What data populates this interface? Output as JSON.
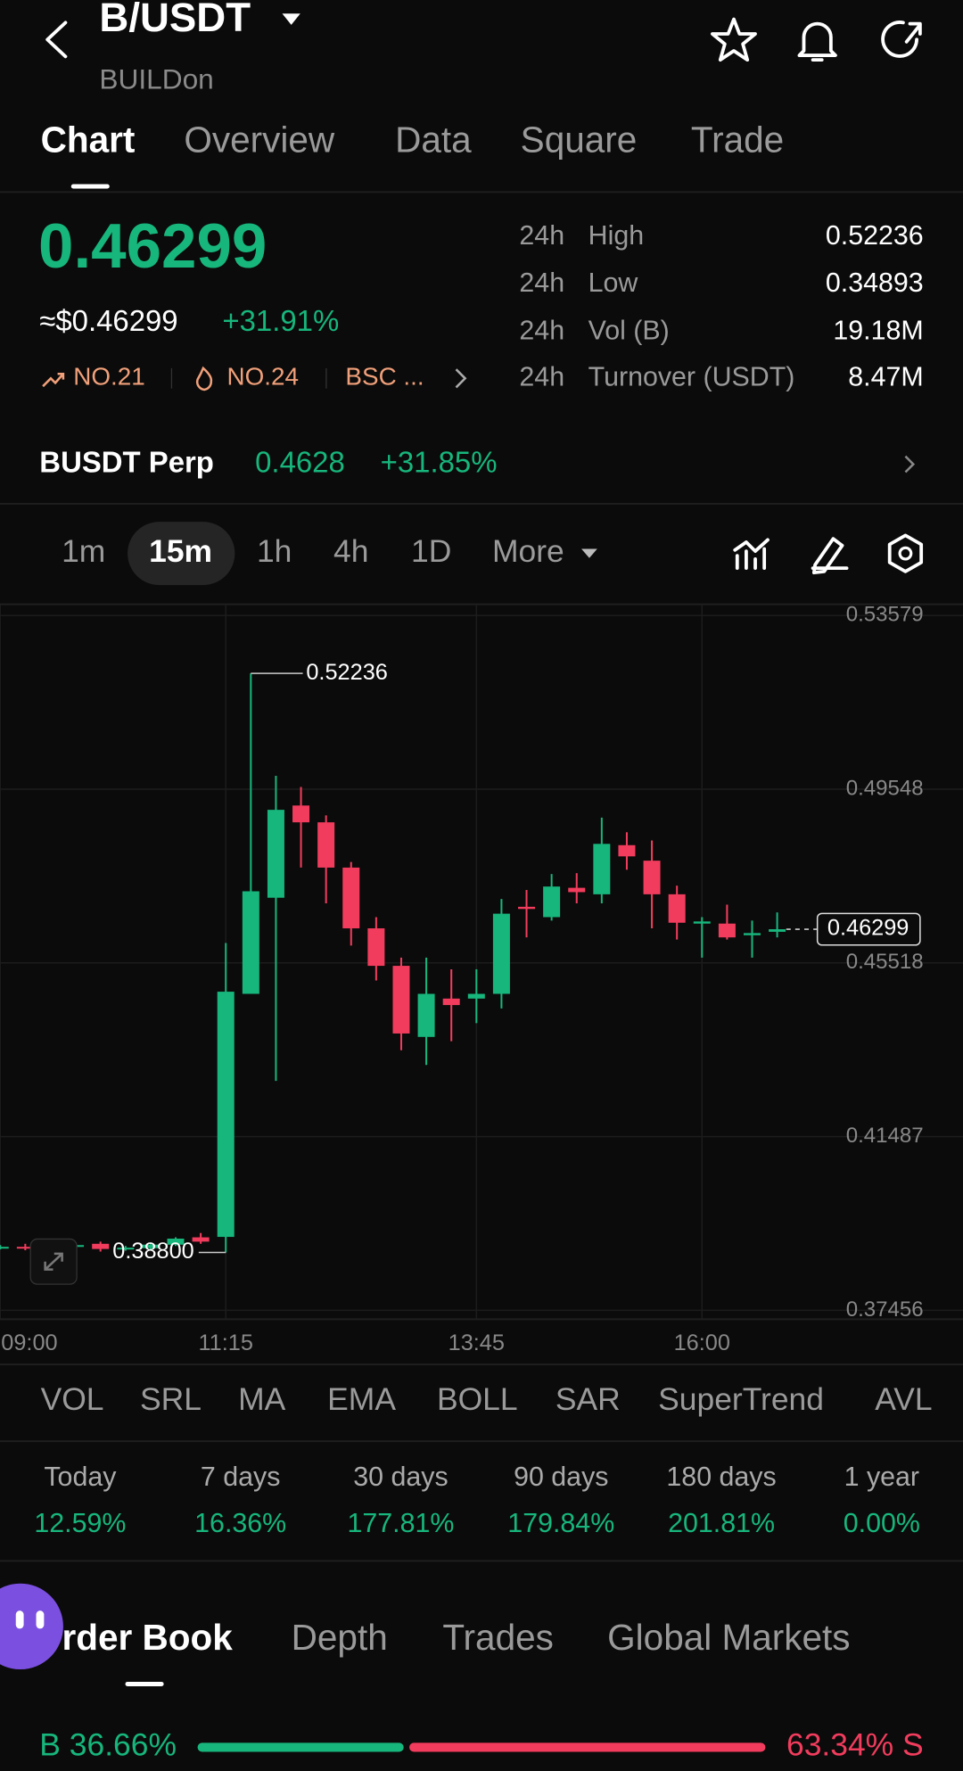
{
  "header": {
    "title": "B/USDT",
    "subtitle": "BUILDon"
  },
  "tabs": [
    "Chart",
    "Overview",
    "Data",
    "Square",
    "Trade"
  ],
  "price": {
    "last": "0.46299",
    "usd": "≈$0.46299",
    "change": "+31.91%",
    "tags": [
      "NO.21",
      "NO.24",
      "BSC ..."
    ]
  },
  "stats": [
    {
      "period": "24h",
      "label": "High",
      "value": "0.52236"
    },
    {
      "period": "24h",
      "label": "Low",
      "value": "0.34893"
    },
    {
      "period": "24h",
      "label": "Vol (B)",
      "value": "19.18M"
    },
    {
      "period": "24h",
      "label": "Turnover (USDT)",
      "value": "8.47M"
    }
  ],
  "perp": {
    "name": "BUSDT Perp",
    "price": "0.4628",
    "change": "+31.85%"
  },
  "intervals": [
    "1m",
    "15m",
    "1h",
    "4h",
    "1D",
    "More"
  ],
  "chart_data": {
    "type": "candlestick",
    "categories": [
      "09:00",
      null,
      null,
      null,
      null,
      null,
      null,
      null,
      null,
      "11:15",
      null,
      null,
      null,
      null,
      null,
      null,
      null,
      null,
      null,
      "13:45",
      null,
      null,
      null,
      null,
      null,
      null,
      null,
      null,
      "16:00",
      null,
      null,
      null
    ],
    "open": [
      0.389,
      0.3893,
      0.3891,
      0.3895,
      0.39,
      0.3888,
      0.389,
      0.3898,
      0.3915,
      0.3916,
      0.448,
      0.4703,
      0.4917,
      0.4878,
      0.4773,
      0.4632,
      0.4545,
      0.438,
      0.4469,
      0.4469,
      0.448,
      0.4682,
      0.4658,
      0.4726,
      0.4711,
      0.4825,
      0.4789,
      0.4711,
      0.4643,
      0.4643,
      0.4616,
      0.4624
    ],
    "high": [
      0.3897,
      0.39,
      0.3898,
      0.39,
      0.3905,
      0.3895,
      0.3903,
      0.3915,
      0.3925,
      0.4598,
      0.52236,
      0.4986,
      0.496,
      0.4894,
      0.4786,
      0.4658,
      0.4564,
      0.4564,
      0.4537,
      0.4537,
      0.47,
      0.4721,
      0.4758,
      0.476,
      0.4889,
      0.4855,
      0.4836,
      0.4731,
      0.4658,
      0.4687,
      0.465,
      0.4669
    ],
    "low": [
      0.3887,
      0.3885,
      0.3886,
      0.389,
      0.3882,
      0.3884,
      0.3886,
      0.3895,
      0.39,
      0.388,
      0.448,
      0.4278,
      0.4773,
      0.469,
      0.4592,
      0.4511,
      0.4349,
      0.4315,
      0.437,
      0.4412,
      0.4446,
      0.4611,
      0.465,
      0.469,
      0.469,
      0.4768,
      0.4632,
      0.4606,
      0.4564,
      0.4606,
      0.4564,
      0.4611
    ],
    "close": [
      0.3893,
      0.3891,
      0.3895,
      0.3897,
      0.3888,
      0.3891,
      0.3898,
      0.3912,
      0.3905,
      0.4485,
      0.4718,
      0.4907,
      0.4878,
      0.4773,
      0.4632,
      0.4545,
      0.4388,
      0.448,
      0.4454,
      0.448,
      0.4666,
      0.4677,
      0.4729,
      0.4716,
      0.4828,
      0.4799,
      0.4711,
      0.4645,
      0.4648,
      0.4611,
      0.4621,
      0.46299
    ],
    "up_color": "#17b67c",
    "down_color": "#f23c5d",
    "ylim": [
      0.3725,
      0.5384
    ],
    "yticks": [
      0.37456,
      0.41487,
      0.45518,
      0.49548,
      0.53579
    ],
    "grid": true,
    "high_label": 0.52236,
    "low_label": {
      "value": 0.388,
      "label": "0.38800"
    },
    "last_price": 0.46299
  },
  "indicators": [
    "VOL",
    "SRL",
    "MA",
    "EMA",
    "BOLL",
    "SAR",
    "SuperTrend",
    "AVL"
  ],
  "performance": [
    {
      "period": "Today",
      "value": "12.59%"
    },
    {
      "period": "7 days",
      "value": "16.36%"
    },
    {
      "period": "30 days",
      "value": "177.81%"
    },
    {
      "period": "90 days",
      "value": "179.84%"
    },
    {
      "period": "180 days",
      "value": "201.81%"
    },
    {
      "period": "1 year",
      "value": "0.00%"
    }
  ],
  "order_tabs": [
    "Order Book",
    "Depth",
    "Trades",
    "Global Markets"
  ],
  "ratio": {
    "buy": 36.66,
    "sell": 63.34,
    "value_labels": [
      "B 36.66%",
      "63.34% S"
    ]
  }
}
